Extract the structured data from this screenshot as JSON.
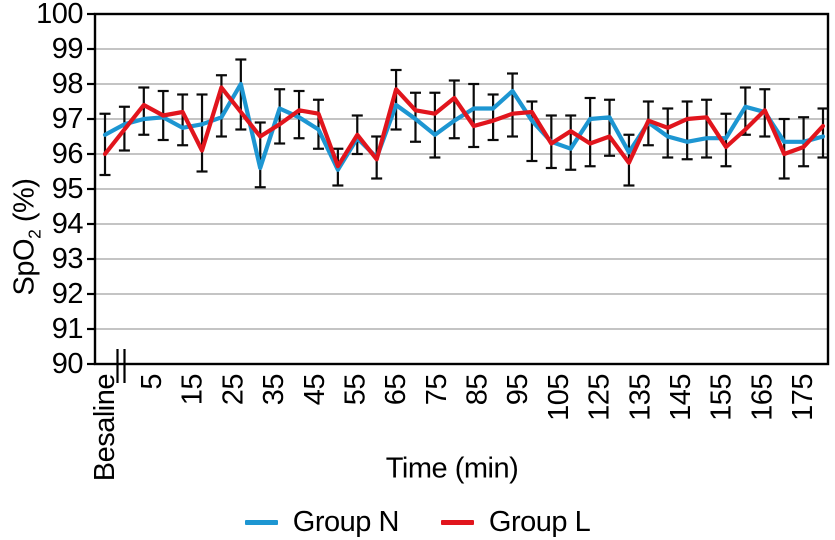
{
  "figure": {
    "y_axis": {
      "title_main": "SpO",
      "title_sub": "2",
      "title_unit": " (%)",
      "min": 90,
      "max": 100,
      "tick_labels": [
        "100",
        "99",
        "98",
        "97",
        "96",
        "95",
        "94",
        "93",
        "92",
        "91",
        "90"
      ]
    },
    "x_axis": {
      "title": "Time (min)",
      "tick_labels": [
        "Besaline",
        "5",
        "15",
        "25",
        "35",
        "45",
        "55",
        "65",
        "75",
        "85",
        "95",
        "105",
        "125",
        "135",
        "145",
        "155",
        "165",
        "175"
      ],
      "break_after_first_tick": true
    },
    "legend": [
      {
        "label": "Group N",
        "color": "#1d96d2"
      },
      {
        "label": "Group L",
        "color": "#e1151d"
      }
    ],
    "colors": {
      "grid": "#b0b0b0",
      "axis": "#000000",
      "error_bar": "#0a0a0a",
      "group_n": "#1d96d2",
      "group_l": "#e1151d"
    }
  },
  "chart_data": {
    "type": "line",
    "title": "",
    "xlabel": "Time (min)",
    "ylabel": "SpO2 (%)",
    "ylim": [
      90,
      100
    ],
    "grid": "horizontal",
    "legend_position": "bottom",
    "x_values": [
      "Baseline",
      5,
      10,
      15,
      20,
      25,
      30,
      35,
      40,
      45,
      50,
      55,
      60,
      65,
      70,
      75,
      80,
      85,
      90,
      95,
      100,
      105,
      110,
      115,
      120,
      125,
      130,
      135,
      140,
      145,
      150,
      155,
      160,
      165,
      170,
      175,
      180,
      185
    ],
    "x_tick_labels_shown": [
      "Besaline",
      "5",
      "15",
      "25",
      "35",
      "45",
      "55",
      "65",
      "75",
      "85",
      "95",
      "105",
      "125",
      "135",
      "145",
      "155",
      "165",
      "175"
    ],
    "series": [
      {
        "name": "Group N",
        "color": "#1d96d2",
        "values": [
          96.55,
          96.85,
          97.0,
          97.05,
          96.75,
          96.85,
          97.05,
          98.0,
          95.6,
          97.3,
          97.05,
          96.7,
          95.55,
          96.45,
          95.9,
          97.4,
          97.0,
          96.55,
          96.95,
          97.3,
          97.3,
          97.8,
          96.95,
          96.35,
          96.15,
          97.0,
          97.05,
          96.05,
          96.9,
          96.5,
          96.35,
          96.45,
          96.45,
          97.35,
          97.2,
          96.35,
          96.35,
          96.5
        ]
      },
      {
        "name": "Group L",
        "color": "#e1151d",
        "values": [
          96.0,
          96.7,
          97.4,
          97.1,
          97.2,
          96.1,
          97.9,
          97.2,
          96.5,
          96.85,
          97.25,
          97.15,
          95.65,
          96.55,
          95.85,
          97.85,
          97.25,
          97.15,
          97.6,
          96.8,
          96.95,
          97.15,
          97.2,
          96.3,
          96.65,
          96.3,
          96.5,
          95.75,
          96.95,
          96.75,
          97.0,
          97.05,
          96.2,
          96.7,
          97.25,
          96.0,
          96.2,
          96.8
        ]
      }
    ],
    "error_bars": {
      "upper": [
        97.15,
        97.35,
        97.9,
        97.8,
        97.7,
        97.7,
        98.25,
        98.7,
        96.9,
        97.85,
        97.8,
        97.55,
        96.15,
        97.1,
        96.5,
        98.4,
        97.75,
        97.75,
        98.1,
        98.0,
        97.7,
        98.3,
        97.5,
        97.1,
        97.1,
        97.6,
        97.55,
        96.55,
        97.5,
        97.3,
        97.5,
        97.55,
        97.15,
        97.9,
        97.85,
        97.0,
        97.05,
        97.3
      ],
      "lower": [
        95.4,
        96.1,
        96.55,
        96.4,
        96.25,
        95.5,
        96.5,
        96.7,
        95.05,
        96.3,
        96.45,
        96.15,
        95.1,
        96.0,
        95.3,
        96.7,
        96.35,
        95.9,
        96.45,
        96.2,
        96.4,
        96.5,
        95.8,
        95.6,
        95.55,
        95.65,
        95.95,
        95.1,
        96.25,
        95.9,
        95.85,
        95.9,
        95.65,
        96.55,
        96.5,
        95.3,
        95.65,
        95.9
      ]
    }
  }
}
